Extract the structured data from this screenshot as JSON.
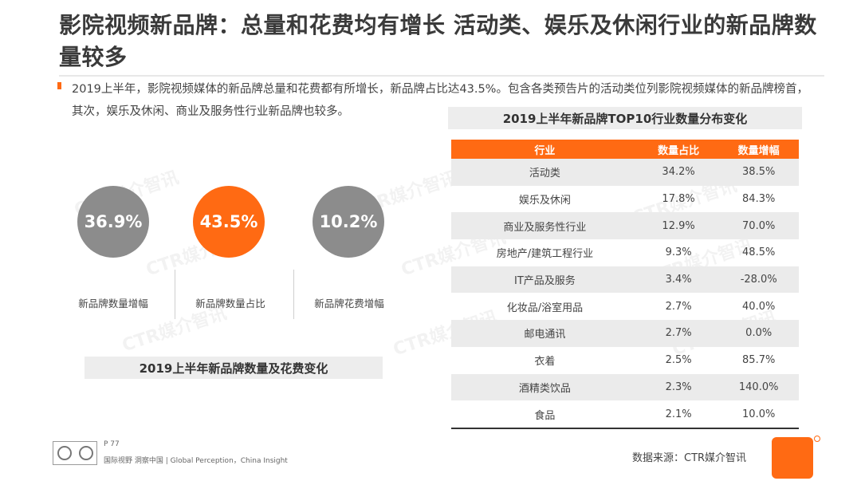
{
  "title": "影院视频新品牌：总量和花费均有增长 活动类、娱乐及休闲行业的新品牌数量较多",
  "intro": "2019上半年，影院视频媒体的新品牌总量和花费都有所增长，新品牌占比达43.5%。包含各类预告片的活动类位列影院视频媒体的新品牌榜首，其次，娱乐及休闲、商业及服务性行业新品牌也较多。",
  "metrics": [
    {
      "value": "36.9%",
      "label": "新品牌数量增幅",
      "color": "#8c8c8c"
    },
    {
      "value": "43.5%",
      "label": "新品牌数量占比",
      "color": "#ff6a13"
    },
    {
      "value": "10.2%",
      "label": "新品牌花费增幅",
      "color": "#8c8c8c"
    }
  ],
  "left_caption": "2019上半年新品牌数量及花费变化",
  "right_caption": "2019上半年新品牌TOP10行业数量分布变化",
  "table": {
    "headers": [
      "行业",
      "数量占比",
      "数量增幅"
    ],
    "rows": [
      [
        "活动类",
        "34.2%",
        "38.5%"
      ],
      [
        "娱乐及休闲",
        "17.8%",
        "84.3%"
      ],
      [
        "商业及服务性行业",
        "12.9%",
        "70.0%"
      ],
      [
        "房地产/建筑工程行业",
        "9.3%",
        "48.5%"
      ],
      [
        "IT产品及服务",
        "3.4%",
        "-28.0%"
      ],
      [
        "化妆品/浴室用品",
        "2.7%",
        "40.0%"
      ],
      [
        "邮电通讯",
        "2.7%",
        "0.0%"
      ],
      [
        "衣着",
        "2.5%",
        "85.7%"
      ],
      [
        "酒精类饮品",
        "2.3%",
        "140.0%"
      ],
      [
        "食品",
        "2.1%",
        "10.0%"
      ]
    ]
  },
  "footer": {
    "page": "P 77",
    "tagline": "国际视野 洞察中国 | Global Perception，China Insight",
    "source": "数据来源：CTR媒介智讯"
  },
  "watermark": "CTR媒介智讯",
  "accent_color": "#ff6a13"
}
